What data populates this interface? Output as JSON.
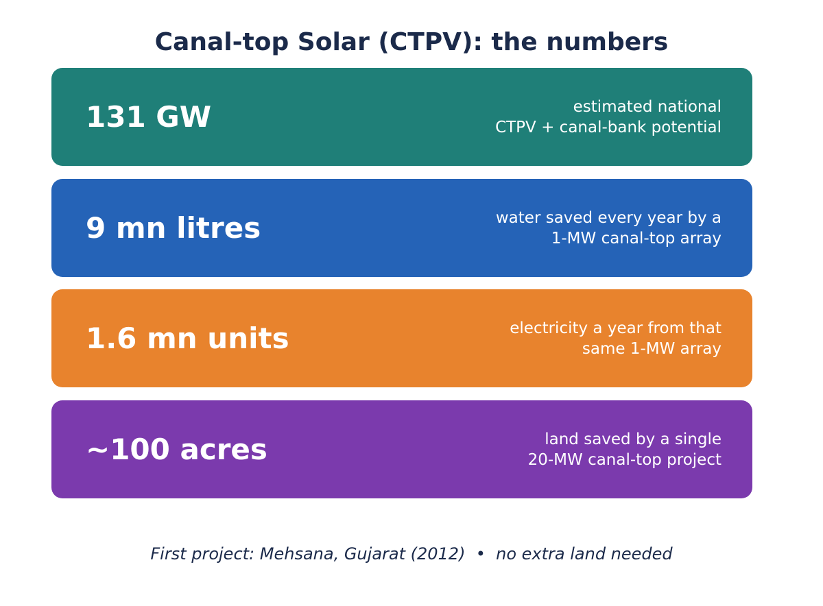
{
  "title": "Canal-top Solar (CTPV): the numbers",
  "stats": [
    {
      "value": "131 GW",
      "desc_lines": [
        "estimated national",
        "CTPV + canal-bank potential"
      ],
      "color": "#1f7f78"
    },
    {
      "value": "9 mn litres",
      "desc_lines": [
        "water saved every year by a",
        "1-MW canal-top array"
      ],
      "color": "#2563b7"
    },
    {
      "value": "1.6 mn units",
      "desc_lines": [
        "electricity a year from that",
        "same 1-MW array"
      ],
      "color": "#e8832d"
    },
    {
      "value": "~100 acres",
      "desc_lines": [
        "land saved by a single",
        "20-MW canal-top project"
      ],
      "color": "#7b3aad"
    }
  ],
  "footer": {
    "project": "First project: Mehsana, Gujarat (2012)",
    "separator": "•",
    "note": "no extra land needed"
  }
}
